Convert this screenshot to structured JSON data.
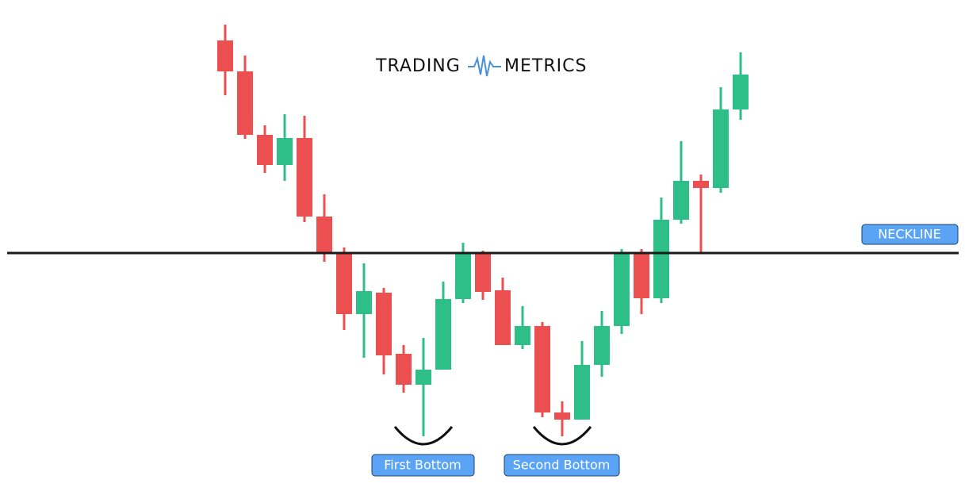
{
  "chart_data": {
    "type": "candlestick",
    "logo": [
      "TRADING",
      "METRICS"
    ],
    "ylim": [
      0,
      619
    ],
    "up_color": "#2dbf87",
    "down_color": "#eb4f4f",
    "open": [
      568,
      529,
      449,
      411,
      445,
      346,
      299,
      223,
      250,
      173,
      134,
      153,
      242,
      299,
      253,
      184,
      208,
      99,
      90,
      159,
      208,
      299,
      243,
      342,
      391,
      382,
      481
    ],
    "high": [
      588,
      549,
      461,
      475,
      473,
      374,
      307,
      287,
      256,
      184,
      193,
      264,
      313,
      303,
      269,
      233,
      213,
      113,
      189,
      227,
      305,
      305,
      370,
      441,
      399,
      509,
      553
    ],
    "low": [
      499,
      444,
      401,
      391,
      339,
      289,
      203,
      168,
      147,
      124,
      69,
      153,
      237,
      241,
      184,
      179,
      93,
      69,
      90,
      144,
      198,
      223,
      237,
      337,
      299,
      376,
      468
    ],
    "close": [
      529,
      449,
      411,
      445,
      346,
      301,
      223,
      252,
      171,
      134,
      153,
      242,
      299,
      251,
      184,
      208,
      99,
      90,
      159,
      208,
      299,
      243,
      342,
      391,
      382,
      481,
      525
    ],
    "neckline": {
      "label": "NECKLINE",
      "value": 300
    },
    "annotations": [
      "First Bottom",
      "Second Bottom"
    ]
  }
}
